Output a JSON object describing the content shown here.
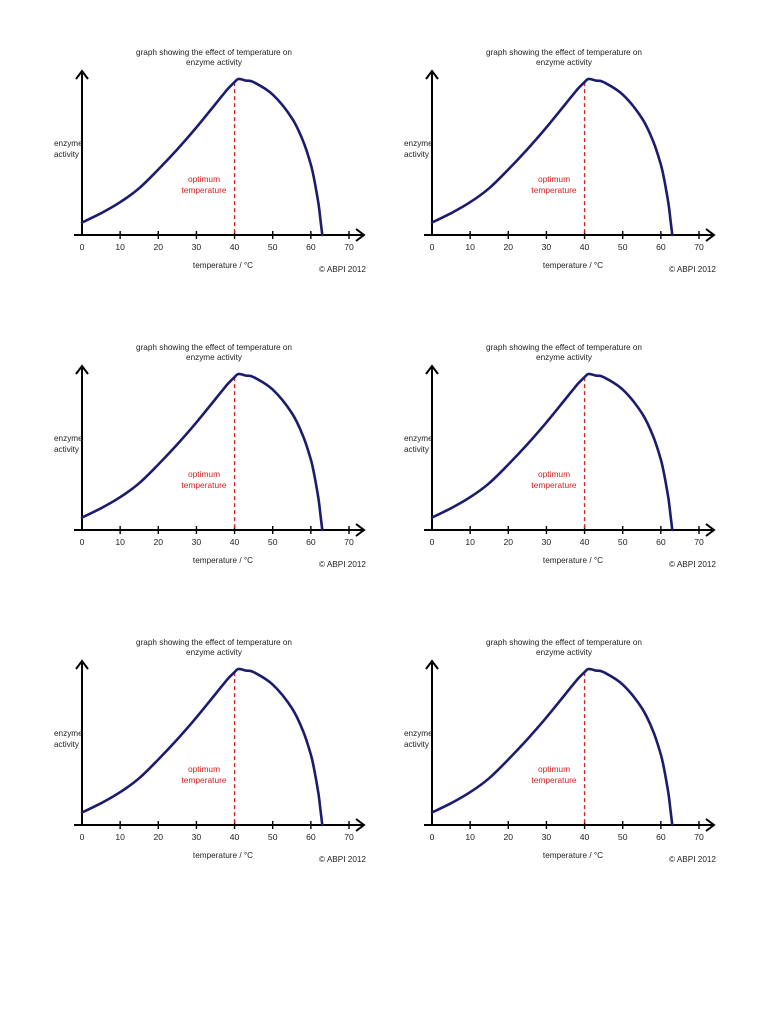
{
  "chart_data": [
    {
      "type": "line",
      "title": [
        "graph showing the effect of temperature on",
        "enzyme activity"
      ],
      "xlabel": "temperature / °C",
      "ylabel": [
        "enzyme",
        "activity"
      ],
      "x_ticks": [
        "0",
        "10",
        "20",
        "30",
        "40",
        "50",
        "60",
        "70"
      ],
      "xlim": [
        0,
        70
      ],
      "ylim": [
        0,
        1
      ],
      "annotation": [
        "optimum",
        "temperature"
      ],
      "optimum_x": 40,
      "credit": "© ABPI 2012",
      "grid": false,
      "line_color": "#1c1c6e",
      "annotation_color": "#d32020",
      "series": [
        {
          "x": [
            0,
            5,
            10,
            15,
            20,
            25,
            30,
            35,
            38,
            40,
            41,
            43,
            45,
            50,
            55,
            58,
            60,
            61,
            62,
            62.5,
            63
          ],
          "y": [
            0.08,
            0.14,
            0.21,
            0.3,
            0.42,
            0.55,
            0.69,
            0.84,
            0.93,
            0.98,
            1.0,
            0.99,
            0.98,
            0.9,
            0.75,
            0.6,
            0.45,
            0.34,
            0.2,
            0.1,
            0.0
          ]
        }
      ]
    },
    {
      "type": "line",
      "title": [
        "graph showing the effect of temperature on",
        "enzyme activity"
      ],
      "xlabel": "temperature / °C",
      "ylabel": [
        "enzyme",
        "activity"
      ],
      "x_ticks": [
        "0",
        "10",
        "20",
        "30",
        "40",
        "50",
        "60",
        "70"
      ],
      "xlim": [
        0,
        70
      ],
      "ylim": [
        0,
        1
      ],
      "annotation": [
        "optimum",
        "temperature"
      ],
      "optimum_x": 40,
      "credit": "© ABPI 2012",
      "grid": false,
      "line_color": "#1c1c6e",
      "annotation_color": "#d32020",
      "series": [
        {
          "x": [
            0,
            5,
            10,
            15,
            20,
            25,
            30,
            35,
            38,
            40,
            41,
            43,
            45,
            50,
            55,
            58,
            60,
            61,
            62,
            62.5,
            63
          ],
          "y": [
            0.08,
            0.14,
            0.21,
            0.3,
            0.42,
            0.55,
            0.69,
            0.84,
            0.93,
            0.98,
            1.0,
            0.99,
            0.98,
            0.9,
            0.75,
            0.6,
            0.45,
            0.34,
            0.2,
            0.1,
            0.0
          ]
        }
      ]
    },
    {
      "type": "line",
      "title": [
        "graph showing the effect of temperature on",
        "enzyme activity"
      ],
      "xlabel": "temperature / °C",
      "ylabel": [
        "enzyme",
        "activity"
      ],
      "x_ticks": [
        "0",
        "10",
        "20",
        "30",
        "40",
        "50",
        "60",
        "70"
      ],
      "xlim": [
        0,
        70
      ],
      "ylim": [
        0,
        1
      ],
      "annotation": [
        "optimum",
        "temperature"
      ],
      "optimum_x": 40,
      "credit": "© ABPI 2012",
      "grid": false,
      "line_color": "#1c1c6e",
      "annotation_color": "#d32020",
      "series": [
        {
          "x": [
            0,
            5,
            10,
            15,
            20,
            25,
            30,
            35,
            38,
            40,
            41,
            43,
            45,
            50,
            55,
            58,
            60,
            61,
            62,
            62.5,
            63
          ],
          "y": [
            0.08,
            0.14,
            0.21,
            0.3,
            0.42,
            0.55,
            0.69,
            0.84,
            0.93,
            0.98,
            1.0,
            0.99,
            0.98,
            0.9,
            0.75,
            0.6,
            0.45,
            0.34,
            0.2,
            0.1,
            0.0
          ]
        }
      ]
    },
    {
      "type": "line",
      "title": [
        "graph showing the effect of temperature on",
        "enzyme activity"
      ],
      "xlabel": "temperature / °C",
      "ylabel": [
        "enzyme",
        "activity"
      ],
      "x_ticks": [
        "0",
        "10",
        "20",
        "30",
        "40",
        "50",
        "60",
        "70"
      ],
      "xlim": [
        0,
        70
      ],
      "ylim": [
        0,
        1
      ],
      "annotation": [
        "optimum",
        "temperature"
      ],
      "optimum_x": 40,
      "credit": "© ABPI 2012",
      "grid": false,
      "line_color": "#1c1c6e",
      "annotation_color": "#d32020",
      "series": [
        {
          "x": [
            0,
            5,
            10,
            15,
            20,
            25,
            30,
            35,
            38,
            40,
            41,
            43,
            45,
            50,
            55,
            58,
            60,
            61,
            62,
            62.5,
            63
          ],
          "y": [
            0.08,
            0.14,
            0.21,
            0.3,
            0.42,
            0.55,
            0.69,
            0.84,
            0.93,
            0.98,
            1.0,
            0.99,
            0.98,
            0.9,
            0.75,
            0.6,
            0.45,
            0.34,
            0.2,
            0.1,
            0.0
          ]
        }
      ]
    },
    {
      "type": "line",
      "title": [
        "graph showing the effect of temperature on",
        "enzyme activity"
      ],
      "xlabel": "temperature / °C",
      "ylabel": [
        "enzyme",
        "activity"
      ],
      "x_ticks": [
        "0",
        "10",
        "20",
        "30",
        "40",
        "50",
        "60",
        "70"
      ],
      "xlim": [
        0,
        70
      ],
      "ylim": [
        0,
        1
      ],
      "annotation": [
        "optimum",
        "temperature"
      ],
      "optimum_x": 40,
      "credit": "© ABPI 2012",
      "grid": false,
      "line_color": "#1c1c6e",
      "annotation_color": "#d32020",
      "series": [
        {
          "x": [
            0,
            5,
            10,
            15,
            20,
            25,
            30,
            35,
            38,
            40,
            41,
            43,
            45,
            50,
            55,
            58,
            60,
            61,
            62,
            62.5,
            63
          ],
          "y": [
            0.08,
            0.14,
            0.21,
            0.3,
            0.42,
            0.55,
            0.69,
            0.84,
            0.93,
            0.98,
            1.0,
            0.99,
            0.98,
            0.9,
            0.75,
            0.6,
            0.45,
            0.34,
            0.2,
            0.1,
            0.0
          ]
        }
      ]
    },
    {
      "type": "line",
      "title": [
        "graph showing the effect of temperature on",
        "enzyme activity"
      ],
      "xlabel": "temperature / °C",
      "ylabel": [
        "enzyme",
        "activity"
      ],
      "x_ticks": [
        "0",
        "10",
        "20",
        "30",
        "40",
        "50",
        "60",
        "70"
      ],
      "xlim": [
        0,
        70
      ],
      "ylim": [
        0,
        1
      ],
      "annotation": [
        "optimum",
        "temperature"
      ],
      "optimum_x": 40,
      "credit": "© ABPI 2012",
      "grid": false,
      "line_color": "#1c1c6e",
      "annotation_color": "#d32020",
      "series": [
        {
          "x": [
            0,
            5,
            10,
            15,
            20,
            25,
            30,
            35,
            38,
            40,
            41,
            43,
            45,
            50,
            55,
            58,
            60,
            61,
            62,
            62.5,
            63
          ],
          "y": [
            0.08,
            0.14,
            0.21,
            0.3,
            0.42,
            0.55,
            0.69,
            0.84,
            0.93,
            0.98,
            1.0,
            0.99,
            0.98,
            0.9,
            0.75,
            0.6,
            0.45,
            0.34,
            0.2,
            0.1,
            0.0
          ]
        }
      ]
    }
  ]
}
